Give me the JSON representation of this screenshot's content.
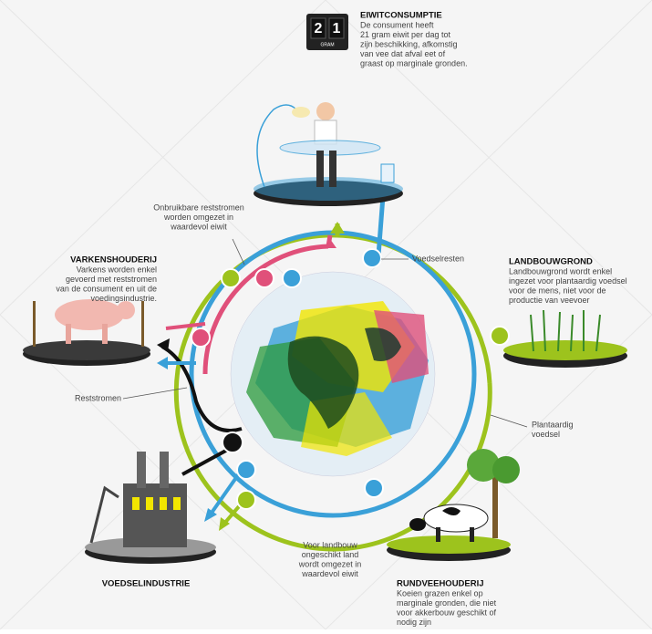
{
  "counter": {
    "digits": [
      "2",
      "1"
    ],
    "unit": "GRAM"
  },
  "blocks": [
    {
      "title": "EIWITCONSUMPTIE",
      "lines": [
        "De consument heeft",
        "21 gram eiwit per dag tot",
        "zijn beschikking, afkomstig",
        "van vee dat afval eet of",
        "graast op marginale gronden."
      ]
    },
    {
      "lines": [
        "Onbruikbare reststromen",
        "worden omgezet in",
        "waardevol eiwit"
      ]
    },
    {
      "title": "VARKENSHOUDERIJ",
      "lines": [
        "Varkens worden enkel",
        "gevoerd met reststromen",
        "van de consument en uit de",
        "voedingsindustrie."
      ]
    },
    {
      "lines": [
        "Voedselresten"
      ]
    },
    {
      "title": "LANDBOUWGROND",
      "lines": [
        "Landbouwgrond wordt enkel",
        "ingezet voor plantaardig voedsel",
        "voor de mens, niet voor de",
        "productie van veevoer"
      ]
    },
    {
      "lines": [
        "Reststromen"
      ]
    },
    {
      "lines": [
        "Plantaardig",
        "voedsel"
      ]
    },
    {
      "title": "VOEDSELINDUSTRIE"
    },
    {
      "lines": [
        "Voor landbouw",
        "ongeschikt land",
        "wordt omgezet in",
        "waardevol eiwit"
      ]
    },
    {
      "title": "RUNDVEEHOUDERIJ",
      "lines": [
        "Koeien grazen enkel op",
        "marginale gronden, die niet",
        "voor akkerbouw geschikt of",
        "nodig zijn"
      ]
    }
  ]
}
